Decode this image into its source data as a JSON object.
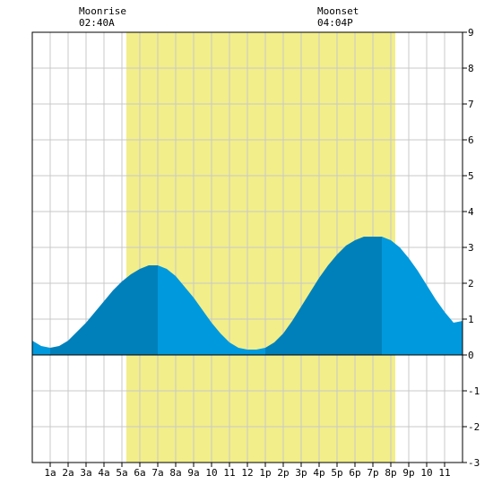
{
  "moon": {
    "rise_label": "Moonrise",
    "rise_time": "02:40A",
    "set_label": "Moonset",
    "set_time": "04:04P"
  },
  "chart_data": {
    "type": "area",
    "title": "",
    "xlabel": "",
    "ylabel": "",
    "x_unit": "hour",
    "xlim": [
      0,
      24
    ],
    "ylim": [
      -3,
      9
    ],
    "x_ticks": [
      {
        "x": 1,
        "label": "1a"
      },
      {
        "x": 2,
        "label": "2a"
      },
      {
        "x": 3,
        "label": "3a"
      },
      {
        "x": 4,
        "label": "4a"
      },
      {
        "x": 5,
        "label": "5a"
      },
      {
        "x": 6,
        "label": "6a"
      },
      {
        "x": 7,
        "label": "7a"
      },
      {
        "x": 8,
        "label": "8a"
      },
      {
        "x": 9,
        "label": "9a"
      },
      {
        "x": 10,
        "label": "10"
      },
      {
        "x": 11,
        "label": "11"
      },
      {
        "x": 12,
        "label": "12"
      },
      {
        "x": 13,
        "label": "1p"
      },
      {
        "x": 14,
        "label": "2p"
      },
      {
        "x": 15,
        "label": "3p"
      },
      {
        "x": 16,
        "label": "4p"
      },
      {
        "x": 17,
        "label": "5p"
      },
      {
        "x": 18,
        "label": "6p"
      },
      {
        "x": 19,
        "label": "7p"
      },
      {
        "x": 20,
        "label": "8p"
      },
      {
        "x": 21,
        "label": "9p"
      },
      {
        "x": 22,
        "label": "10"
      },
      {
        "x": 23,
        "label": "11"
      }
    ],
    "y_ticks": [
      -3,
      -2,
      -1,
      0,
      1,
      2,
      3,
      4,
      5,
      6,
      7,
      8,
      9
    ],
    "grid": true,
    "daylight": {
      "start": 5.25,
      "end": 20.25
    },
    "tide_extremes": [
      {
        "x": 1.0,
        "y": 0.2,
        "kind": "low"
      },
      {
        "x": 7.0,
        "y": 2.5,
        "kind": "high"
      },
      {
        "x": 13.0,
        "y": 0.2,
        "kind": "low"
      },
      {
        "x": 19.5,
        "y": 3.3,
        "kind": "high"
      }
    ],
    "series": [
      {
        "x": [
          0,
          0.5,
          1,
          1.5,
          2,
          2.5,
          3,
          3.5,
          4,
          4.5,
          5,
          5.5,
          6,
          6.5,
          7,
          7.5,
          8,
          8.5,
          9,
          9.5,
          10,
          10.5,
          11,
          11.5,
          12,
          12.5,
          13,
          13.5,
          14,
          14.5,
          15,
          15.5,
          16,
          16.5,
          17,
          17.5,
          18,
          18.5,
          19,
          19.5,
          20,
          20.5,
          21,
          21.5,
          22,
          22.5,
          23,
          23.5,
          24
        ],
        "values": [
          0.4,
          0.25,
          0.2,
          0.25,
          0.4,
          0.65,
          0.9,
          1.2,
          1.5,
          1.8,
          2.05,
          2.25,
          2.4,
          2.5,
          2.5,
          2.4,
          2.2,
          1.9,
          1.6,
          1.25,
          0.9,
          0.6,
          0.35,
          0.2,
          0.15,
          0.15,
          0.2,
          0.35,
          0.6,
          0.95,
          1.35,
          1.75,
          2.15,
          2.5,
          2.8,
          3.05,
          3.2,
          3.3,
          3.3,
          3.3,
          3.2,
          3.0,
          2.7,
          2.35,
          1.95,
          1.55,
          1.2,
          0.9,
          0.95
        ]
      }
    ],
    "colors": {
      "daylight": "#f2ee8a",
      "tide_rising": "#0080bb",
      "tide_falling": "#0099dd",
      "grid": "#c8c8c8",
      "zero_line": "#000000"
    }
  }
}
